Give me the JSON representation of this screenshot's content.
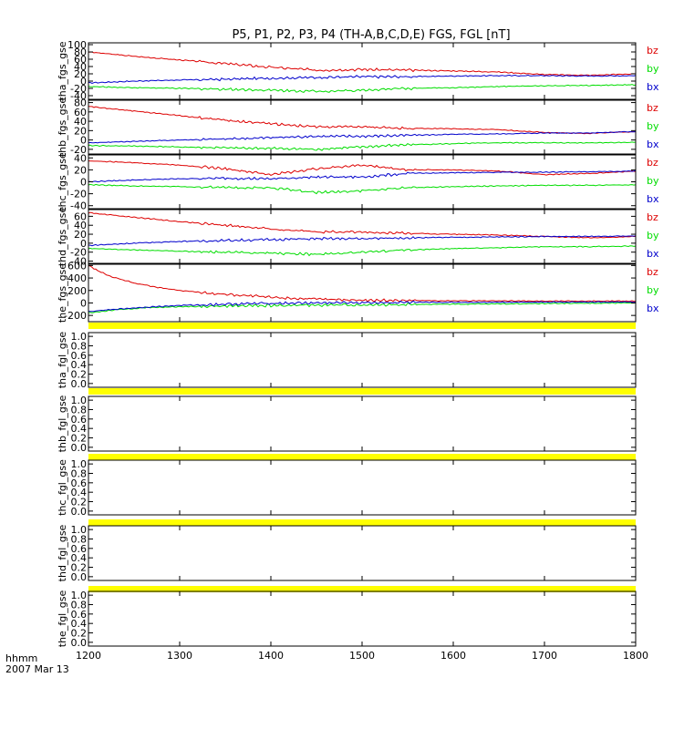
{
  "title": "P5, P1, P2, P3, P4 (TH-A,B,C,D,E) FGS, FGL [nT]",
  "footer": {
    "time_label": "hhmm",
    "date_label": "2007 Mar 13"
  },
  "colors": {
    "bz": "#dd0000",
    "by": "#00dd00",
    "bx": "#0000cc",
    "yellow_band": "#ffff00",
    "axis": "#000000"
  },
  "chart_data": [
    {
      "type": "line",
      "ylabel": "tha_fgs_gse",
      "xlim": [
        1200,
        1800
      ],
      "ylim": [
        -50,
        105
      ],
      "yticks": [
        100,
        80,
        60,
        40,
        20,
        0,
        -20,
        -40
      ],
      "xticks": [
        1200,
        1300,
        1400,
        1500,
        1600,
        1700,
        1800
      ],
      "series": [
        {
          "name": "bz",
          "color": "#dd0000",
          "x": [
            1200,
            1250,
            1300,
            1350,
            1400,
            1450,
            1500,
            1550,
            1600,
            1650,
            1700,
            1750,
            1800
          ],
          "y": [
            80,
            68,
            58,
            48,
            38,
            30,
            32,
            30,
            28,
            25,
            18,
            16,
            20
          ]
        },
        {
          "name": "by",
          "color": "#00dd00",
          "x": [
            1200,
            1250,
            1300,
            1350,
            1400,
            1450,
            1500,
            1550,
            1600,
            1650,
            1700,
            1750,
            1800
          ],
          "y": [
            -15,
            -18,
            -20,
            -22,
            -25,
            -28,
            -25,
            -20,
            -18,
            -15,
            -13,
            -12,
            -10
          ]
        },
        {
          "name": "bx",
          "color": "#0000cc",
          "x": [
            1200,
            1250,
            1300,
            1350,
            1400,
            1450,
            1500,
            1550,
            1600,
            1650,
            1700,
            1750,
            1800
          ],
          "y": [
            -5,
            0,
            3,
            5,
            8,
            10,
            12,
            12,
            14,
            15,
            15,
            14,
            15
          ]
        }
      ],
      "legend": [
        "bz",
        "by",
        "bx"
      ]
    },
    {
      "type": "line",
      "ylabel": "thb_fgs_gse",
      "xlim": [
        1200,
        1800
      ],
      "ylim": [
        -30,
        85
      ],
      "yticks": [
        80,
        60,
        40,
        20,
        0,
        -20
      ],
      "xticks": [
        1200,
        1300,
        1400,
        1500,
        1600,
        1700,
        1800
      ],
      "series": [
        {
          "name": "bz",
          "color": "#dd0000",
          "x": [
            1200,
            1250,
            1300,
            1350,
            1400,
            1450,
            1500,
            1550,
            1600,
            1650,
            1700,
            1750,
            1800
          ],
          "y": [
            72,
            62,
            52,
            42,
            35,
            28,
            28,
            25,
            24,
            22,
            16,
            14,
            18
          ]
        },
        {
          "name": "by",
          "color": "#00dd00",
          "x": [
            1200,
            1250,
            1300,
            1350,
            1400,
            1450,
            1500,
            1550,
            1600,
            1650,
            1700,
            1750,
            1800
          ],
          "y": [
            -12,
            -13,
            -15,
            -17,
            -18,
            -20,
            -15,
            -10,
            -8,
            -6,
            -6,
            -6,
            -5
          ]
        },
        {
          "name": "bx",
          "color": "#0000cc",
          "x": [
            1200,
            1250,
            1300,
            1350,
            1400,
            1450,
            1500,
            1550,
            1600,
            1650,
            1700,
            1750,
            1800
          ],
          "y": [
            -6,
            -3,
            0,
            2,
            5,
            8,
            8,
            10,
            12,
            13,
            15,
            15,
            18
          ]
        }
      ],
      "legend": [
        "bz",
        "by",
        "bx"
      ]
    },
    {
      "type": "line",
      "ylabel": "thc_fgs_gse",
      "xlim": [
        1200,
        1800
      ],
      "ylim": [
        -45,
        45
      ],
      "yticks": [
        40,
        20,
        0,
        -20,
        -40
      ],
      "xticks": [
        1200,
        1300,
        1400,
        1500,
        1600,
        1700,
        1800
      ],
      "series": [
        {
          "name": "bz",
          "color": "#dd0000",
          "x": [
            1200,
            1250,
            1300,
            1350,
            1400,
            1450,
            1500,
            1550,
            1600,
            1650,
            1700,
            1750,
            1800
          ],
          "y": [
            35,
            32,
            28,
            22,
            12,
            22,
            28,
            20,
            20,
            18,
            12,
            14,
            18
          ]
        },
        {
          "name": "by",
          "color": "#00dd00",
          "x": [
            1200,
            1250,
            1300,
            1350,
            1400,
            1450,
            1500,
            1550,
            1600,
            1650,
            1700,
            1750,
            1800
          ],
          "y": [
            -5,
            -7,
            -8,
            -10,
            -10,
            -18,
            -15,
            -10,
            -8,
            -7,
            -6,
            -6,
            -5
          ]
        },
        {
          "name": "bx",
          "color": "#0000cc",
          "x": [
            1200,
            1250,
            1300,
            1350,
            1400,
            1450,
            1500,
            1550,
            1600,
            1650,
            1700,
            1750,
            1800
          ],
          "y": [
            0,
            3,
            5,
            6,
            5,
            8,
            8,
            14,
            15,
            16,
            16,
            17,
            18
          ]
        }
      ],
      "legend": [
        "bz",
        "by",
        "bx"
      ]
    },
    {
      "type": "line",
      "ylabel": "thd_fgs_gse",
      "xlim": [
        1200,
        1800
      ],
      "ylim": [
        -45,
        75
      ],
      "yticks": [
        60,
        40,
        20,
        0,
        -20,
        -40
      ],
      "xticks": [
        1200,
        1300,
        1400,
        1500,
        1600,
        1700,
        1800
      ],
      "series": [
        {
          "name": "bz",
          "color": "#dd0000",
          "x": [
            1200,
            1250,
            1300,
            1350,
            1400,
            1450,
            1500,
            1550,
            1600,
            1650,
            1700,
            1750,
            1800
          ],
          "y": [
            68,
            58,
            48,
            40,
            32,
            25,
            25,
            22,
            20,
            18,
            15,
            12,
            15
          ]
        },
        {
          "name": "by",
          "color": "#00dd00",
          "x": [
            1200,
            1250,
            1300,
            1350,
            1400,
            1450,
            1500,
            1550,
            1600,
            1650,
            1700,
            1750,
            1800
          ],
          "y": [
            -12,
            -15,
            -18,
            -20,
            -22,
            -25,
            -20,
            -15,
            -12,
            -10,
            -8,
            -8,
            -6
          ]
        },
        {
          "name": "bx",
          "color": "#0000cc",
          "x": [
            1200,
            1250,
            1300,
            1350,
            1400,
            1450,
            1500,
            1550,
            1600,
            1650,
            1700,
            1750,
            1800
          ],
          "y": [
            -5,
            0,
            4,
            6,
            8,
            10,
            10,
            12,
            13,
            14,
            15,
            15,
            16
          ]
        }
      ],
      "legend": [
        "bz",
        "by",
        "bx"
      ]
    },
    {
      "type": "line",
      "ylabel": "the_fgs_gse",
      "xlim": [
        1200,
        1800
      ],
      "ylim": [
        -300,
        620
      ],
      "yticks": [
        600,
        400,
        200,
        0,
        -200
      ],
      "xticks": [
        1200,
        1300,
        1400,
        1500,
        1600,
        1700,
        1800
      ],
      "series": [
        {
          "name": "bz",
          "color": "#dd0000",
          "x": [
            1200,
            1210,
            1225,
            1250,
            1275,
            1300,
            1330,
            1360,
            1400,
            1450,
            1500,
            1600,
            1700,
            1800
          ],
          "y": [
            600,
            520,
            420,
            320,
            250,
            200,
            160,
            130,
            90,
            60,
            45,
            35,
            30,
            30
          ]
        },
        {
          "name": "by",
          "color": "#00dd00",
          "x": [
            1200,
            1230,
            1260,
            1300,
            1350,
            1400,
            1500,
            1600,
            1700,
            1800
          ],
          "y": [
            -160,
            -110,
            -80,
            -60,
            -50,
            -40,
            -30,
            -20,
            -10,
            0
          ]
        },
        {
          "name": "bx",
          "color": "#0000cc",
          "x": [
            1200,
            1230,
            1260,
            1300,
            1350,
            1400,
            1500,
            1600,
            1700,
            1800
          ],
          "y": [
            -140,
            -100,
            -70,
            -40,
            -20,
            -5,
            5,
            10,
            15,
            15
          ]
        }
      ],
      "legend": [
        "bz",
        "by",
        "bx"
      ]
    },
    {
      "type": "line",
      "ylabel": "tha_fgl_gse",
      "xlim": [
        1200,
        1800
      ],
      "ylim": [
        -0.08,
        1.08
      ],
      "yticks": [
        1.0,
        0.8,
        0.6,
        0.4,
        0.2,
        0.0
      ],
      "tick_labels": [
        "1.0",
        "0.8",
        "0.6",
        "0.4",
        "0.2",
        "0.0"
      ],
      "series": []
    },
    {
      "type": "line",
      "ylabel": "thb_fgl_gse",
      "xlim": [
        1200,
        1800
      ],
      "ylim": [
        -0.08,
        1.08
      ],
      "yticks": [
        1.0,
        0.8,
        0.6,
        0.4,
        0.2,
        0.0
      ],
      "tick_labels": [
        "1.0",
        "0.8",
        "0.6",
        "0.4",
        "0.2",
        "0.0"
      ],
      "series": []
    },
    {
      "type": "line",
      "ylabel": "thc_fgl_gse",
      "xlim": [
        1200,
        1800
      ],
      "ylim": [
        -0.08,
        1.08
      ],
      "yticks": [
        1.0,
        0.8,
        0.6,
        0.4,
        0.2,
        0.0
      ],
      "tick_labels": [
        "1.0",
        "0.8",
        "0.6",
        "0.4",
        "0.2",
        "0.0"
      ],
      "series": []
    },
    {
      "type": "line",
      "ylabel": "thd_fgl_gse",
      "xlim": [
        1200,
        1800
      ],
      "ylim": [
        -0.08,
        1.08
      ],
      "yticks": [
        1.0,
        0.8,
        0.6,
        0.4,
        0.2,
        0.0
      ],
      "tick_labels": [
        "1.0",
        "0.8",
        "0.6",
        "0.4",
        "0.2",
        "0.0"
      ],
      "series": []
    },
    {
      "type": "line",
      "ylabel": "the_fgl_gse",
      "xlim": [
        1200,
        1800
      ],
      "ylim": [
        -0.08,
        1.08
      ],
      "yticks": [
        1.0,
        0.8,
        0.6,
        0.4,
        0.2,
        0.0
      ],
      "tick_labels": [
        "1.0",
        "0.8",
        "0.6",
        "0.4",
        "0.2",
        "0.0"
      ],
      "series": []
    }
  ],
  "x_axis": {
    "ticks": [
      1200,
      1300,
      1400,
      1500,
      1600,
      1700,
      1800
    ],
    "tick_labels": [
      "1200",
      "1300",
      "1400",
      "1500",
      "1600",
      "1700",
      "1800"
    ]
  }
}
